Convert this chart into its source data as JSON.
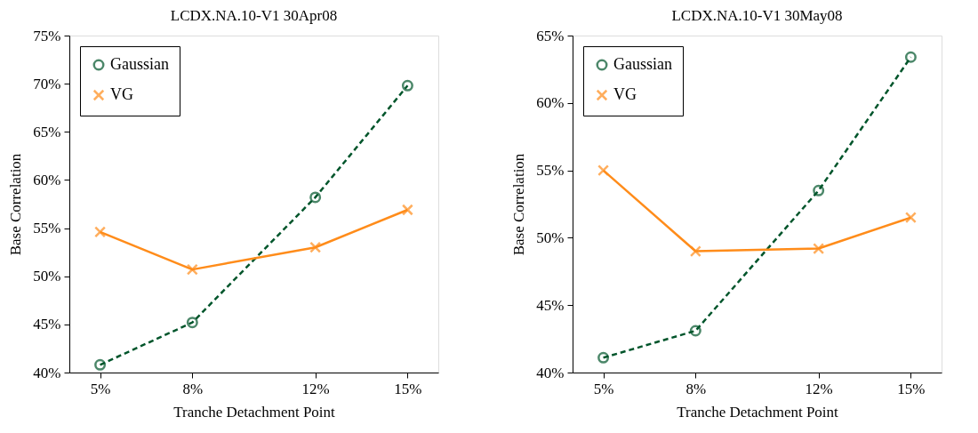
{
  "chart_data": [
    {
      "type": "line",
      "title": "LCDX.NA.10-V1 30Apr08",
      "xlabel": "Tranche Detachment Point",
      "ylabel": "Base Correlation",
      "x": [
        5,
        8,
        12,
        15
      ],
      "series": [
        {
          "name": "Gaussian",
          "color": "#00552b",
          "marker": "circle",
          "line_style": "dashed",
          "values": [
            40.8,
            45.2,
            58.2,
            69.8
          ]
        },
        {
          "name": "VG",
          "color": "#ff8c1a",
          "marker": "cross",
          "line_style": "solid",
          "values": [
            54.6,
            50.7,
            53.0,
            56.9
          ]
        }
      ],
      "xlim": [
        4,
        16
      ],
      "ylim": [
        40,
        75
      ],
      "xticks": [
        {
          "value": 5,
          "label": "5%"
        },
        {
          "value": 8,
          "label": "8%"
        },
        {
          "value": 12,
          "label": "12%"
        },
        {
          "value": 15,
          "label": "15%"
        }
      ],
      "yticks": [
        {
          "value": 40,
          "label": "40%"
        },
        {
          "value": 45,
          "label": "45%"
        },
        {
          "value": 50,
          "label": "50%"
        },
        {
          "value": 55,
          "label": "55%"
        },
        {
          "value": 60,
          "label": "60%"
        },
        {
          "value": 65,
          "label": "65%"
        },
        {
          "value": 70,
          "label": "70%"
        },
        {
          "value": 75,
          "label": "75%"
        }
      ],
      "legend": "top left",
      "grid": false
    },
    {
      "type": "line",
      "title": "LCDX.NA.10-V1 30May08",
      "xlabel": "Tranche Detachment Point",
      "ylabel": "Base Correlation",
      "x": [
        5,
        8,
        12,
        15
      ],
      "series": [
        {
          "name": "Gaussian",
          "color": "#00552b",
          "marker": "circle",
          "line_style": "dashed",
          "values": [
            41.1,
            43.1,
            53.5,
            63.4
          ]
        },
        {
          "name": "VG",
          "color": "#ff8c1a",
          "marker": "cross",
          "line_style": "solid",
          "values": [
            55.0,
            49.0,
            49.2,
            51.5
          ]
        }
      ],
      "xlim": [
        4,
        16
      ],
      "ylim": [
        40,
        65
      ],
      "xticks": [
        {
          "value": 5,
          "label": "5%"
        },
        {
          "value": 8,
          "label": "8%"
        },
        {
          "value": 12,
          "label": "12%"
        },
        {
          "value": 15,
          "label": "15%"
        }
      ],
      "yticks": [
        {
          "value": 40,
          "label": "40%"
        },
        {
          "value": 45,
          "label": "45%"
        },
        {
          "value": 50,
          "label": "50%"
        },
        {
          "value": 55,
          "label": "55%"
        },
        {
          "value": 60,
          "label": "60%"
        },
        {
          "value": 65,
          "label": "65%"
        }
      ],
      "legend": "top left",
      "grid": false
    }
  ]
}
